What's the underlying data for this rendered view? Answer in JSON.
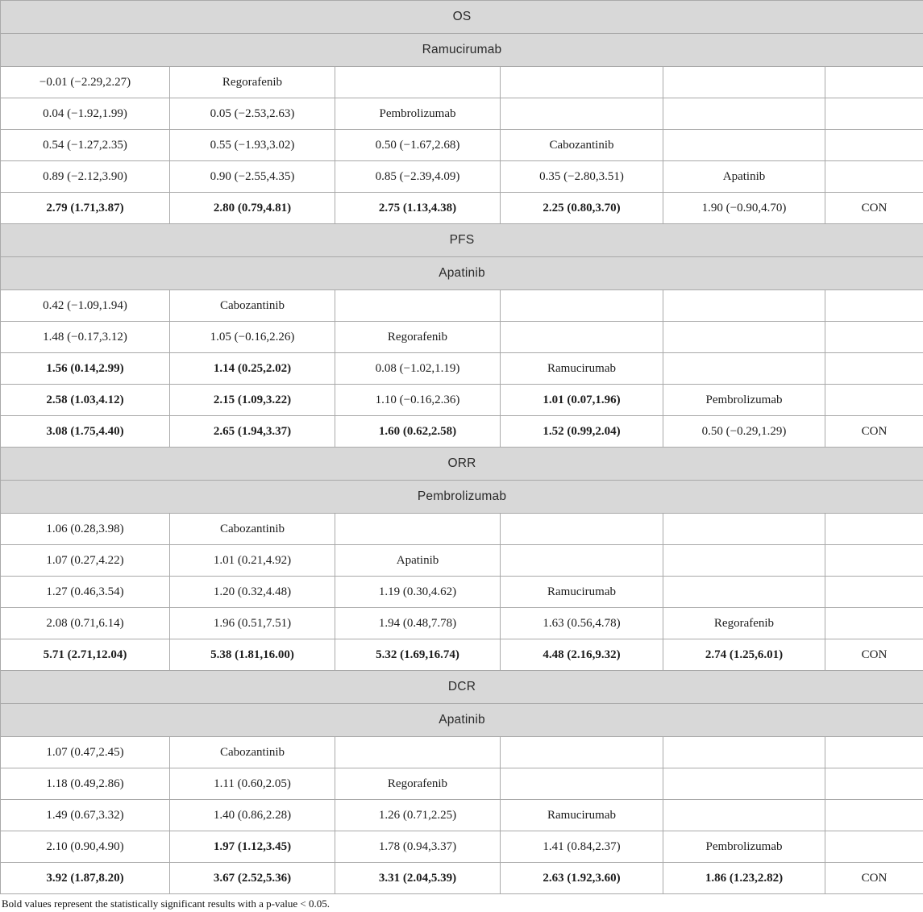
{
  "colors": {
    "header_bg": "#d8d8d8",
    "border": "#a9a9a9"
  },
  "table": {
    "footnote": "Bold values represent the statistically significant results with a p-value < 0.05.",
    "column_count": 6,
    "sections": [
      {
        "outcome": "OS",
        "reference": "Ramucirumab",
        "rows": [
          [
            {
              "t": "−0.01 (−2.29,2.27)"
            },
            {
              "t": "Regorafenib"
            },
            {},
            {},
            {},
            {}
          ],
          [
            {
              "t": "0.04 (−1.92,1.99)"
            },
            {
              "t": "0.05 (−2.53,2.63)"
            },
            {
              "t": "Pembrolizumab"
            },
            {},
            {},
            {}
          ],
          [
            {
              "t": "0.54 (−1.27,2.35)"
            },
            {
              "t": "0.55 (−1.93,3.02)"
            },
            {
              "t": "0.50 (−1.67,2.68)"
            },
            {
              "t": "Cabozantinib"
            },
            {},
            {}
          ],
          [
            {
              "t": "0.89 (−2.12,3.90)"
            },
            {
              "t": "0.90 (−2.55,4.35)"
            },
            {
              "t": "0.85 (−2.39,4.09)"
            },
            {
              "t": "0.35 (−2.80,3.51)"
            },
            {
              "t": "Apatinib"
            },
            {}
          ],
          [
            {
              "t": "2.79 (1.71,3.87)",
              "b": true
            },
            {
              "t": "2.80 (0.79,4.81)",
              "b": true
            },
            {
              "t": "2.75 (1.13,4.38)",
              "b": true
            },
            {
              "t": "2.25 (0.80,3.70)",
              "b": true
            },
            {
              "t": "1.90 (−0.90,4.70)"
            },
            {
              "t": "CON"
            }
          ]
        ]
      },
      {
        "outcome": "PFS",
        "reference": "Apatinib",
        "rows": [
          [
            {
              "t": "0.42 (−1.09,1.94)"
            },
            {
              "t": "Cabozantinib"
            },
            {},
            {},
            {},
            {}
          ],
          [
            {
              "t": "1.48 (−0.17,3.12)"
            },
            {
              "t": "1.05 (−0.16,2.26)"
            },
            {
              "t": "Regorafenib"
            },
            {},
            {},
            {}
          ],
          [
            {
              "t": "1.56 (0.14,2.99)",
              "b": true
            },
            {
              "t": "1.14 (0.25,2.02)",
              "b": true
            },
            {
              "t": "0.08 (−1.02,1.19)"
            },
            {
              "t": "Ramucirumab"
            },
            {},
            {}
          ],
          [
            {
              "t": "2.58 (1.03,4.12)",
              "b": true
            },
            {
              "t": "2.15 (1.09,3.22)",
              "b": true
            },
            {
              "t": "1.10 (−0.16,2.36)"
            },
            {
              "t": "1.01 (0.07,1.96)",
              "b": true
            },
            {
              "t": "Pembrolizumab"
            },
            {}
          ],
          [
            {
              "t": "3.08 (1.75,4.40)",
              "b": true
            },
            {
              "t": "2.65 (1.94,3.37)",
              "b": true
            },
            {
              "t": "1.60 (0.62,2.58)",
              "b": true
            },
            {
              "t": "1.52 (0.99,2.04)",
              "b": true
            },
            {
              "t": "0.50 (−0.29,1.29)"
            },
            {
              "t": "CON"
            }
          ]
        ]
      },
      {
        "outcome": "ORR",
        "reference": "Pembrolizumab",
        "rows": [
          [
            {
              "t": "1.06 (0.28,3.98)"
            },
            {
              "t": "Cabozantinib"
            },
            {},
            {},
            {},
            {}
          ],
          [
            {
              "t": "1.07 (0.27,4.22)"
            },
            {
              "t": "1.01 (0.21,4.92)"
            },
            {
              "t": "Apatinib"
            },
            {},
            {},
            {}
          ],
          [
            {
              "t": "1.27 (0.46,3.54)"
            },
            {
              "t": "1.20 (0.32,4.48)"
            },
            {
              "t": "1.19 (0.30,4.62)"
            },
            {
              "t": "Ramucirumab"
            },
            {},
            {}
          ],
          [
            {
              "t": "2.08 (0.71,6.14)"
            },
            {
              "t": "1.96 (0.51,7.51)"
            },
            {
              "t": "1.94 (0.48,7.78)"
            },
            {
              "t": "1.63 (0.56,4.78)"
            },
            {
              "t": "Regorafenib"
            },
            {}
          ],
          [
            {
              "t": "5.71 (2.71,12.04)",
              "b": true
            },
            {
              "t": "5.38 (1.81,16.00)",
              "b": true
            },
            {
              "t": "5.32 (1.69,16.74)",
              "b": true
            },
            {
              "t": "4.48 (2.16,9.32)",
              "b": true
            },
            {
              "t": "2.74 (1.25,6.01)",
              "b": true
            },
            {
              "t": "CON"
            }
          ]
        ]
      },
      {
        "outcome": "DCR",
        "reference": "Apatinib",
        "rows": [
          [
            {
              "t": "1.07 (0.47,2.45)"
            },
            {
              "t": "Cabozantinib"
            },
            {},
            {},
            {},
            {}
          ],
          [
            {
              "t": "1.18 (0.49,2.86)"
            },
            {
              "t": "1.11 (0.60,2.05)"
            },
            {
              "t": "Regorafenib"
            },
            {},
            {},
            {}
          ],
          [
            {
              "t": "1.49 (0.67,3.32)"
            },
            {
              "t": "1.40 (0.86,2.28)"
            },
            {
              "t": "1.26 (0.71,2.25)"
            },
            {
              "t": "Ramucirumab"
            },
            {},
            {}
          ],
          [
            {
              "t": "2.10 (0.90,4.90)"
            },
            {
              "t": "1.97 (1.12,3.45)",
              "b": true
            },
            {
              "t": "1.78 (0.94,3.37)"
            },
            {
              "t": "1.41 (0.84,2.37)"
            },
            {
              "t": "Pembrolizumab"
            },
            {}
          ],
          [
            {
              "t": "3.92 (1.87,8.20)",
              "b": true
            },
            {
              "t": "3.67 (2.52,5.36)",
              "b": true
            },
            {
              "t": "3.31 (2.04,5.39)",
              "b": true
            },
            {
              "t": "2.63 (1.92,3.60)",
              "b": true
            },
            {
              "t": "1.86 (1.23,2.82)",
              "b": true
            },
            {
              "t": "CON"
            }
          ]
        ]
      }
    ]
  }
}
